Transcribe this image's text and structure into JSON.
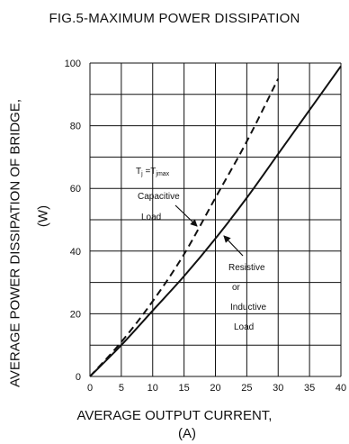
{
  "chart_data": {
    "type": "line",
    "title": "FIG.5-MAXIMUM POWER DISSIPATION",
    "ylabel_lines": [
      "AVERAGE POWER DISSIPATION OF BRIDGE,",
      "(W)"
    ],
    "xlabel_lines": [
      "AVERAGE OUTPUT CURRENT,",
      "(A)"
    ],
    "xlim": [
      0,
      40
    ],
    "ylim": [
      0,
      100
    ],
    "xticks": [
      0,
      5,
      10,
      15,
      20,
      25,
      30,
      35,
      40
    ],
    "yticks": [
      0,
      20,
      40,
      60,
      80,
      100
    ],
    "grid": true,
    "series": [
      {
        "style": "dashed",
        "x": [
          0,
          5,
          10,
          15,
          20,
          25,
          30
        ],
        "y": [
          0,
          11,
          24,
          39,
          57,
          75,
          95
        ]
      },
      {
        "style": "solid",
        "x": [
          0,
          5,
          10,
          15,
          20,
          25,
          30,
          35,
          40
        ],
        "y": [
          0,
          10,
          21,
          32,
          44,
          57,
          71,
          85,
          99
        ]
      }
    ],
    "annotations": {
      "tj_main": "T",
      "tj_sub": "j",
      "tj_eq": " =T",
      "tj_sub2": "jmax",
      "capacitive": [
        "Capacitive",
        "Load"
      ],
      "resistive": [
        "Resistive",
        "or",
        "Inductive",
        "Load"
      ]
    }
  }
}
